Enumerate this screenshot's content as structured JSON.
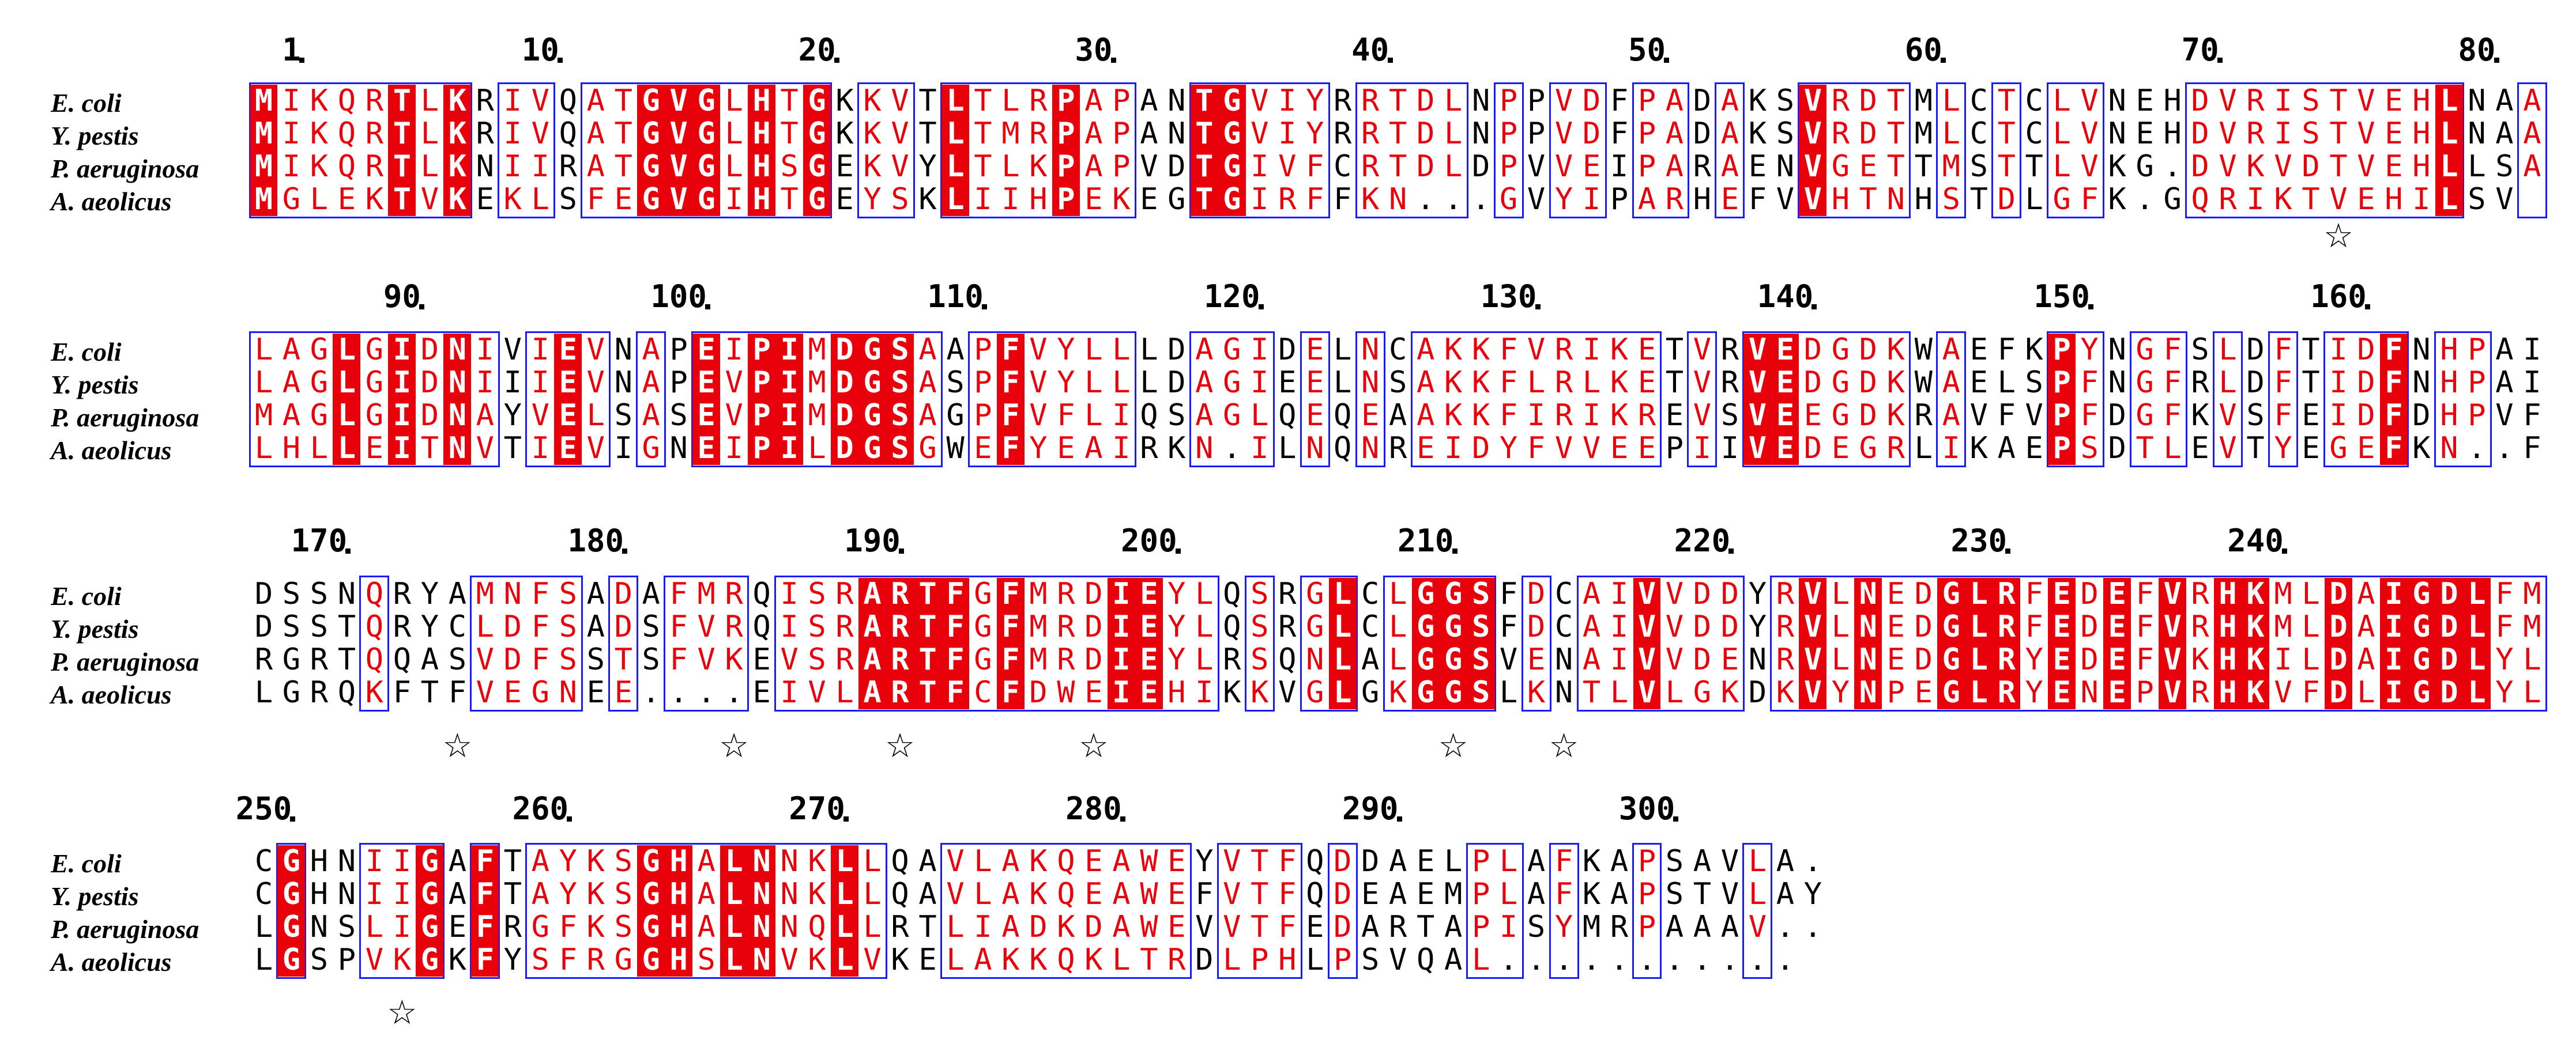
{
  "species": [
    "E. coli",
    "Y. pestis",
    "P. aeruginosa",
    "A. aeolicus"
  ],
  "blocks": [
    {
      "seqs": [
        "MIKQRTLKRIVQATGVGLHTGKKVTLTLRPAPANTGVIYRRTDLNPPVDFPADAKSVRDTMLCTCLVNEHDVRISTVEHLNAA",
        "MIKQRTLKRIVQATGVGLHTGKKVTLTMRPAPANTGVIYRRTDLNPPVDFPADAKSVRDTMLCTCLVNEHDVRISTVEHLNAA",
        "MIKQRTLKNIIRATGVGLHSGEKVYLTLKPAPVDTGIVFCRTDLDPVVEIPARAENVGETTMSTTLVKG.DVKVDTVEHLLSA",
        "MGLEKTVKEKLSFEGVGIHTGEYSKLIIHPEKEGTGIRFFKN...GVYIPARHEFVVHTNHSTDLGFK.GQRIKTVEHILSV"
      ],
      "ticks": [
        "1",
        "10",
        "20",
        "30",
        "40",
        "50",
        "60",
        "70",
        "80"
      ],
      "stars": [
        "★"
      ]
    },
    {
      "seqs": [
        "LAGLGIDNIVIEVNAPEIPIMDGSAAPFVYLLLDAGIDELNCAKKFVRIKETVRVEDGDKWAEFKPYNGFSLDFTIDFNHPAI",
        "LAGLGIDNIIIEVNAPEVPIMDGSASPFVYLLLDAGIEELNSAKKFLRLKETVRVEDGDKWAELSPFNGFRLDFTIDFNHPAI",
        "MAGLGIDNAYVELSASEVPIMDGSAGPFVFLIQSAGLQEQEAAKKFIRIKREVSVEEGDKRAVFVPFDGFKVSFEIDFDHPVF",
        "LHLLEITNVTIEVIGNEIPILDGSGWEFYEAIRKN.ILNQNREIDYFVVEEPIIVEDEGRLIKAEPSDTLEVTYEGEFKN..F"
      ],
      "ticks": [
        "90",
        "100",
        "110",
        "120",
        "130",
        "140",
        "150",
        "160"
      ],
      "stars": []
    },
    {
      "seqs": [
        "DSSNQRYAMNFSADAFMRQISRARTFGFMRDIEYLQSRGLCLGGSFDCAIVVDDYRVLNEDGLRFEDEFVRHKMLDAIGDLFM",
        "DSSTQRYCLDFSADSFVRQISRARTFGFMRDIEYLQSRGLCLGGSFDCAIVVDDYRVLNEDGLRFEDEFVRHKMLDAIGDLFM",
        "RGRTQQASVDFSSTSFVKEVSRARTFGFMRDIEYLRSQNLALGGSVENAIVVDENRVLNEDGLRYEDEFVKHKILDAIGDLYL",
        "LGRQKFTFVEGNEE....EIVLARTFCFDWEIEHIKKVGLGKGGSLKNTLVLGKDKVYNPEGLRYENEPVRHKVFDLIGDLYL"
      ],
      "ticks": [
        "170",
        "180",
        "190",
        "200",
        "210",
        "220",
        "230",
        "240"
      ],
      "stars": [
        "★",
        "★",
        "★",
        "★",
        "★",
        "★"
      ]
    },
    {
      "seqs": [
        "CGHNIIGAFTAYKSGHALNNKLLQAVLAKQEAWEYVTFQDDAELPLAFKAPSAVLA.",
        "CGHNIIGAFTAYKSGHALNNKLLQAVLAKQEAWEFVTFQDEAEMPLAFKAPSTVLAY",
        "LGNSLIGEFRGFKSGHALNNQLLRTLIADKDAWEVVTFEDARTAPISYMRPAAAV..",
        "LGSPVKGKFYSFRGGHSLNVKLVKELAKKQKLTRDLPHLPSVQAL..........."
      ],
      "ticks": [
        "250",
        "260",
        "270",
        "280",
        "290",
        "300"
      ],
      "stars": [
        "★"
      ]
    }
  ]
}
